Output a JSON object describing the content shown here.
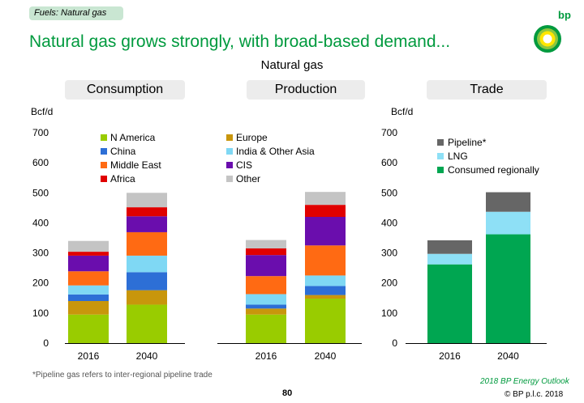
{
  "header": {
    "tag": "Fuels: Natural gas",
    "headline": "Natural gas grows strongly, with broad-based demand...",
    "subtitle": "Natural gas",
    "logo_text": "bp"
  },
  "footer": {
    "footnote": "*Pipeline gas refers to inter-regional pipeline trade",
    "outlook": "2018 BP Energy Outlook",
    "page_number": "80",
    "copyright": "© BP p.l.c. 2018"
  },
  "chart_data": [
    {
      "type": "bar",
      "stacked": true,
      "title": "Consumption",
      "ylabel": "Bcf/d",
      "ylim": [
        0,
        700
      ],
      "yticks": [
        0,
        100,
        200,
        300,
        400,
        500,
        600,
        700
      ],
      "categories": [
        "2016",
        "2040"
      ],
      "series": [
        {
          "name": "N America",
          "color": "#99cc00",
          "values": [
            95,
            128
          ]
        },
        {
          "name": "Europe",
          "color": "#c8960c",
          "values": [
            45,
            48
          ]
        },
        {
          "name": "China",
          "color": "#2d6fd6",
          "values": [
            22,
            60
          ]
        },
        {
          "name": "India & Other Asia",
          "color": "#7fd8f4",
          "values": [
            30,
            55
          ]
        },
        {
          "name": "Middle East",
          "color": "#ff6a13",
          "values": [
            47,
            78
          ]
        },
        {
          "name": "CIS",
          "color": "#6a0dad",
          "values": [
            52,
            53
          ]
        },
        {
          "name": "Africa",
          "color": "#e00000",
          "values": [
            13,
            30
          ]
        },
        {
          "name": "Other",
          "color": "#c4c4c4",
          "values": [
            36,
            48
          ]
        }
      ]
    },
    {
      "type": "bar",
      "stacked": true,
      "title": "Production",
      "ylim": [
        0,
        700
      ],
      "categories": [
        "2016",
        "2040"
      ],
      "series": [
        {
          "name": "N America",
          "color": "#99cc00",
          "values": [
            95,
            148
          ]
        },
        {
          "name": "Europe",
          "color": "#c8960c",
          "values": [
            20,
            12
          ]
        },
        {
          "name": "China",
          "color": "#2d6fd6",
          "values": [
            13,
            30
          ]
        },
        {
          "name": "India & Other Asia",
          "color": "#7fd8f4",
          "values": [
            35,
            35
          ]
        },
        {
          "name": "Middle East",
          "color": "#ff6a13",
          "values": [
            60,
            100
          ]
        },
        {
          "name": "CIS",
          "color": "#6a0dad",
          "values": [
            70,
            95
          ]
        },
        {
          "name": "Africa",
          "color": "#e00000",
          "values": [
            22,
            40
          ]
        },
        {
          "name": "Other",
          "color": "#c4c4c4",
          "values": [
            28,
            43
          ]
        }
      ]
    },
    {
      "type": "bar",
      "stacked": true,
      "title": "Trade",
      "ylabel": "Bcf/d",
      "ylim": [
        0,
        700
      ],
      "yticks": [
        0,
        100,
        200,
        300,
        400,
        500,
        600,
        700
      ],
      "categories": [
        "2016",
        "2040"
      ],
      "series": [
        {
          "name": "Consumed regionally",
          "color": "#00a651",
          "values": [
            262,
            362
          ]
        },
        {
          "name": "LNG",
          "color": "#8ee0f6",
          "values": [
            35,
            75
          ]
        },
        {
          "name": "Pipeline*",
          "color": "#666666",
          "values": [
            45,
            65
          ]
        }
      ]
    }
  ]
}
